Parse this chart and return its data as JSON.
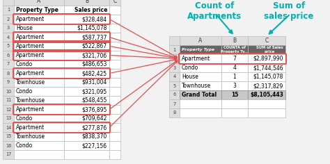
{
  "left_table": {
    "col_A_header": "Property Type",
    "col_B_header": "Sales price",
    "rows": [
      {
        "num": "2",
        "type": "Apartment",
        "price": "$328,484",
        "highlight": true
      },
      {
        "num": "3",
        "type": "House",
        "price": "$1,145,078",
        "highlight": false
      },
      {
        "num": "4",
        "type": "Apartment",
        "price": "$587,737",
        "highlight": true
      },
      {
        "num": "5",
        "type": "Apartment",
        "price": "$522,867",
        "highlight": true
      },
      {
        "num": "6",
        "type": "Apartment",
        "price": "$321,706",
        "highlight": true
      },
      {
        "num": "7",
        "type": "Condo",
        "price": "$486,653",
        "highlight": false
      },
      {
        "num": "8",
        "type": "Apartment",
        "price": "$482,425",
        "highlight": true
      },
      {
        "num": "9",
        "type": "Townhouse",
        "price": "$931,004",
        "highlight": false
      },
      {
        "num": "10",
        "type": "Condo",
        "price": "$321,095",
        "highlight": false
      },
      {
        "num": "11",
        "type": "Townhouse",
        "price": "$548,455",
        "highlight": false
      },
      {
        "num": "12",
        "type": "Apartment",
        "price": "$376,895",
        "highlight": true
      },
      {
        "num": "13",
        "type": "Condo",
        "price": "$709,642",
        "highlight": false
      },
      {
        "num": "14",
        "type": "Apartment",
        "price": "$277,876",
        "highlight": true
      },
      {
        "num": "15",
        "type": "Townhouse",
        "price": "$838,370",
        "highlight": false
      },
      {
        "num": "16",
        "type": "Condo",
        "price": "$227,156",
        "highlight": false
      },
      {
        "num": "17",
        "type": "",
        "price": "",
        "highlight": false
      }
    ]
  },
  "right_table": {
    "header_col_a": "Property Type",
    "header_col_b": "COUNTA of\nProperty Ty...",
    "header_col_c": "SUM of Sales\nprice",
    "rows": [
      {
        "num": "2",
        "type": "Apartment",
        "count": "7",
        "sum": "$2,897,990",
        "highlight": true,
        "bold": false
      },
      {
        "num": "3",
        "type": "Condo",
        "count": "4",
        "sum": "$1,744,546",
        "highlight": false,
        "bold": false
      },
      {
        "num": "4",
        "type": "House",
        "count": "1",
        "sum": "$1,145,078",
        "highlight": false,
        "bold": false
      },
      {
        "num": "5",
        "type": "Townhouse",
        "count": "3",
        "sum": "$2,317,829",
        "highlight": false,
        "bold": false
      },
      {
        "num": "6",
        "type": "Grand Total",
        "count": "15",
        "sum": "$8,105,443",
        "highlight": false,
        "bold": true
      },
      {
        "num": "7",
        "type": "",
        "count": "",
        "sum": "",
        "highlight": false,
        "bold": false
      },
      {
        "num": "8",
        "type": "",
        "count": "",
        "sum": "",
        "highlight": false,
        "bold": false
      }
    ]
  },
  "annotation1_text": "Count of\nApartments",
  "annotation2_text": "Sum of\nsales price",
  "annotation_color": "#00B0B0",
  "highlight_color": "#E05050",
  "header_bg_color": "#666666",
  "header_text_color": "#FFFFFF",
  "row_num_bg": "#DEDEDE",
  "col_header_bg": "#DEDEDE",
  "grand_total_bg": "#C8C8C8",
  "grand_total_border": "#888888",
  "cell_bg": "#FFFFFF",
  "grid_color": "#BBBBBB",
  "bg_color": "#F2F2F2"
}
